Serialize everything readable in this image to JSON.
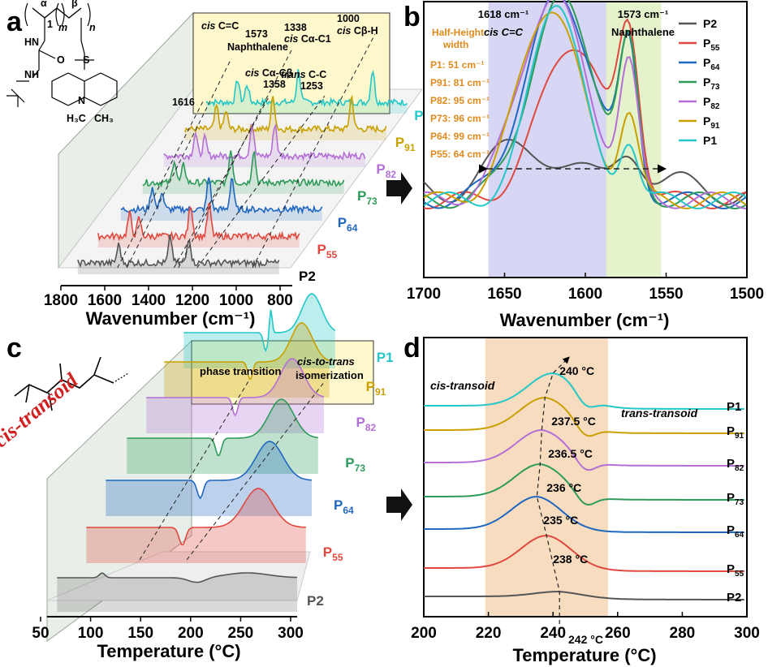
{
  "panels": {
    "a": "a",
    "b": "b",
    "c": "c",
    "d": "d"
  },
  "colors": {
    "P2": "#555555",
    "P55": "#e0483f",
    "P64": "#1f67c1",
    "P73": "#2e9b5a",
    "P82": "#b46fd6",
    "P91": "#c9a000",
    "P1": "#24c7c7",
    "highlight": "#fff8cc",
    "band_blue": "#d7d7f5",
    "band_green": "#e4f3cc",
    "band_orange": "#f7dcc0",
    "orange_text": "#e08a1e",
    "red": "#d22020"
  },
  "chart_data": [
    {
      "panel": "a",
      "type": "line",
      "title": "",
      "xlabel": "Wavenumber (cm⁻¹)",
      "xticks": [
        1800,
        1600,
        1400,
        1200,
        1000,
        800
      ],
      "xlim": [
        1800,
        800
      ],
      "series": [
        {
          "name": "P2",
          "sub": "",
          "color": "#555555",
          "peaks": [
            1573,
            1338,
            1253
          ]
        },
        {
          "name": "P",
          "sub": "55",
          "color": "#e0483f",
          "peaks": [
            1616,
            1573,
            1338,
            1253
          ]
        },
        {
          "name": "P",
          "sub": "64",
          "color": "#1f67c1",
          "peaks": [
            1616,
            1573,
            1358,
            1253
          ]
        },
        {
          "name": "P",
          "sub": "73",
          "color": "#2e9b5a",
          "peaks": [
            1616,
            1573,
            1358,
            1253
          ]
        },
        {
          "name": "P",
          "sub": "82",
          "color": "#b46fd6",
          "peaks": [
            1616,
            1573,
            1358,
            1253
          ]
        },
        {
          "name": "P",
          "sub": "91",
          "color": "#c9a000",
          "peaks": [
            1616,
            1573,
            1358,
            1000
          ]
        },
        {
          "name": "P1",
          "sub": "",
          "color": "#24c7c7",
          "peaks": [
            1616,
            1573,
            1338,
            1000
          ]
        }
      ],
      "annotations": [
        {
          "text": "1616"
        },
        {
          "text": "cis C=C",
          "italic": "cis",
          "rest": " C=C"
        },
        {
          "text": "1573"
        },
        {
          "text": "Naphthalene"
        },
        {
          "text": "cis Cα-Cβ",
          "italic": "cis",
          "rest": " Cα-Cβ"
        },
        {
          "text": "1358"
        },
        {
          "text": "1338"
        },
        {
          "text": "cis Cα-C1",
          "italic": "cis",
          "rest": " Cα-C1"
        },
        {
          "text": "trans C-C",
          "italic": "trans",
          "rest": " C-C"
        },
        {
          "text": "1253"
        },
        {
          "text": "1000"
        },
        {
          "text": "cis Cβ-H",
          "italic": "cis",
          "rest": " Cβ-H"
        }
      ],
      "structure_labels": [
        "α",
        "β",
        "m",
        "n",
        "1",
        "HN",
        "NH",
        "O",
        "S",
        "N",
        "H₃C",
        "CH₃"
      ]
    },
    {
      "panel": "b",
      "type": "line",
      "xlabel": "Wavenumber (cm⁻¹)",
      "xticks": [
        1700,
        1650,
        1600,
        1550,
        1500
      ],
      "xlim": [
        1700,
        1500
      ],
      "bands": [
        {
          "label": "1618 cm⁻¹",
          "sublabel": "cis C=C",
          "from": 1660,
          "to": 1587
        },
        {
          "label": "1573 cm⁻¹",
          "sublabel": "Naphthalene",
          "from": 1587,
          "to": 1553
        }
      ],
      "half_height": {
        "title": [
          "Half-Height",
          "width"
        ],
        "items": [
          {
            "label": "P1: 51 cm⁻¹",
            "value": 51
          },
          {
            "label": "P91: 81 cm⁻¹",
            "value": 81
          },
          {
            "label": "P82: 95 cm⁻¹",
            "value": 95
          },
          {
            "label": "P73: 96 cm⁻¹",
            "value": 96
          },
          {
            "label": "P64: 99 cm⁻¹",
            "value": 99
          },
          {
            "label": "P55: 64 cm⁻¹",
            "value": 64
          }
        ]
      },
      "legend": [
        {
          "name": "P2",
          "sub": "",
          "color": "#555555"
        },
        {
          "name": "P",
          "sub": "55",
          "color": "#e0483f"
        },
        {
          "name": "P",
          "sub": "64",
          "color": "#1f67c1"
        },
        {
          "name": "P",
          "sub": "73",
          "color": "#2e9b5a"
        },
        {
          "name": "P",
          "sub": "82",
          "color": "#b46fd6"
        },
        {
          "name": "P",
          "sub": "91",
          "color": "#c9a000"
        },
        {
          "name": "P1",
          "sub": "",
          "color": "#24c7c7"
        }
      ],
      "series": [
        {
          "name": "P2",
          "peak1": 1635,
          "w1": 28,
          "h1": 0.55,
          "peak2": 1573,
          "w2": 12,
          "h2": 0.45
        },
        {
          "name": "P55",
          "peak1": 1608,
          "w1": 28,
          "h1": 0.78,
          "peak2": 1573,
          "w2": 9,
          "h2": 0.98
        },
        {
          "name": "P64",
          "peak1": 1616,
          "w1": 30,
          "h1": 1.0,
          "peak2": 1573,
          "w2": 8,
          "h2": 0.9
        },
        {
          "name": "P73",
          "peak1": 1614,
          "w1": 29,
          "h1": 0.98,
          "peak2": 1573,
          "w2": 8,
          "h2": 0.88
        },
        {
          "name": "P82",
          "peak1": 1620,
          "w1": 29,
          "h1": 1.0,
          "peak2": 1573,
          "w2": 8,
          "h2": 0.82
        },
        {
          "name": "P91",
          "peak1": 1622,
          "w1": 27,
          "h1": 0.96,
          "peak2": 1573,
          "w2": 8,
          "h2": 0.55
        },
        {
          "name": "P1",
          "peak1": 1618,
          "w1": 22,
          "h1": 1.0,
          "peak2": 1573,
          "w2": 8,
          "h2": 0.4
        }
      ]
    },
    {
      "panel": "c",
      "type": "line",
      "xlabel": "Temperature (°C)",
      "xticks": [
        50,
        100,
        150,
        200,
        250,
        300
      ],
      "xlim": [
        50,
        300
      ],
      "box_labels": [
        "phase transition",
        "cis-to-trans",
        "isomerization"
      ],
      "structure_label": "cis-transoid",
      "series_labels": [
        {
          "name": "P2",
          "sub": "",
          "color": "#555555"
        },
        {
          "name": "P",
          "sub": "55",
          "color": "#e0483f"
        },
        {
          "name": "P",
          "sub": "64",
          "color": "#1f67c1"
        },
        {
          "name": "P",
          "sub": "73",
          "color": "#2e9b5a"
        },
        {
          "name": "P",
          "sub": "82",
          "color": "#b46fd6"
        },
        {
          "name": "P",
          "sub": "91",
          "color": "#c9a000"
        },
        {
          "name": "P1",
          "sub": "",
          "color": "#24c7c7"
        }
      ]
    },
    {
      "panel": "d",
      "type": "line",
      "xlabel": "Temperature (°C)",
      "xticks": [
        200,
        220,
        240,
        260,
        280,
        300
      ],
      "xlim": [
        200,
        300
      ],
      "band": {
        "from": 219,
        "to": 257
      },
      "region_labels": [
        "cis-transoid",
        "trans-transoid"
      ],
      "series": [
        {
          "name": "P2",
          "sub": "",
          "color": "#555555",
          "peak_T": 242,
          "label": "242 °C"
        },
        {
          "name": "P",
          "sub": "55",
          "color": "#e0483f",
          "peak_T": 238,
          "label": "238 °C"
        },
        {
          "name": "P",
          "sub": "64",
          "color": "#1f67c1",
          "peak_T": 235,
          "label": "235 °C"
        },
        {
          "name": "P",
          "sub": "73",
          "color": "#2e9b5a",
          "peak_T": 236,
          "label": "236 °C"
        },
        {
          "name": "P",
          "sub": "82",
          "color": "#b46fd6",
          "peak_T": 236.5,
          "label": "236.5 °C"
        },
        {
          "name": "P",
          "sub": "91",
          "color": "#c9a000",
          "peak_T": 237.5,
          "label": "237.5 °C"
        },
        {
          "name": "P1",
          "sub": "",
          "color": "#24c7c7",
          "peak_T": 240,
          "label": "240 °C"
        }
      ]
    }
  ]
}
